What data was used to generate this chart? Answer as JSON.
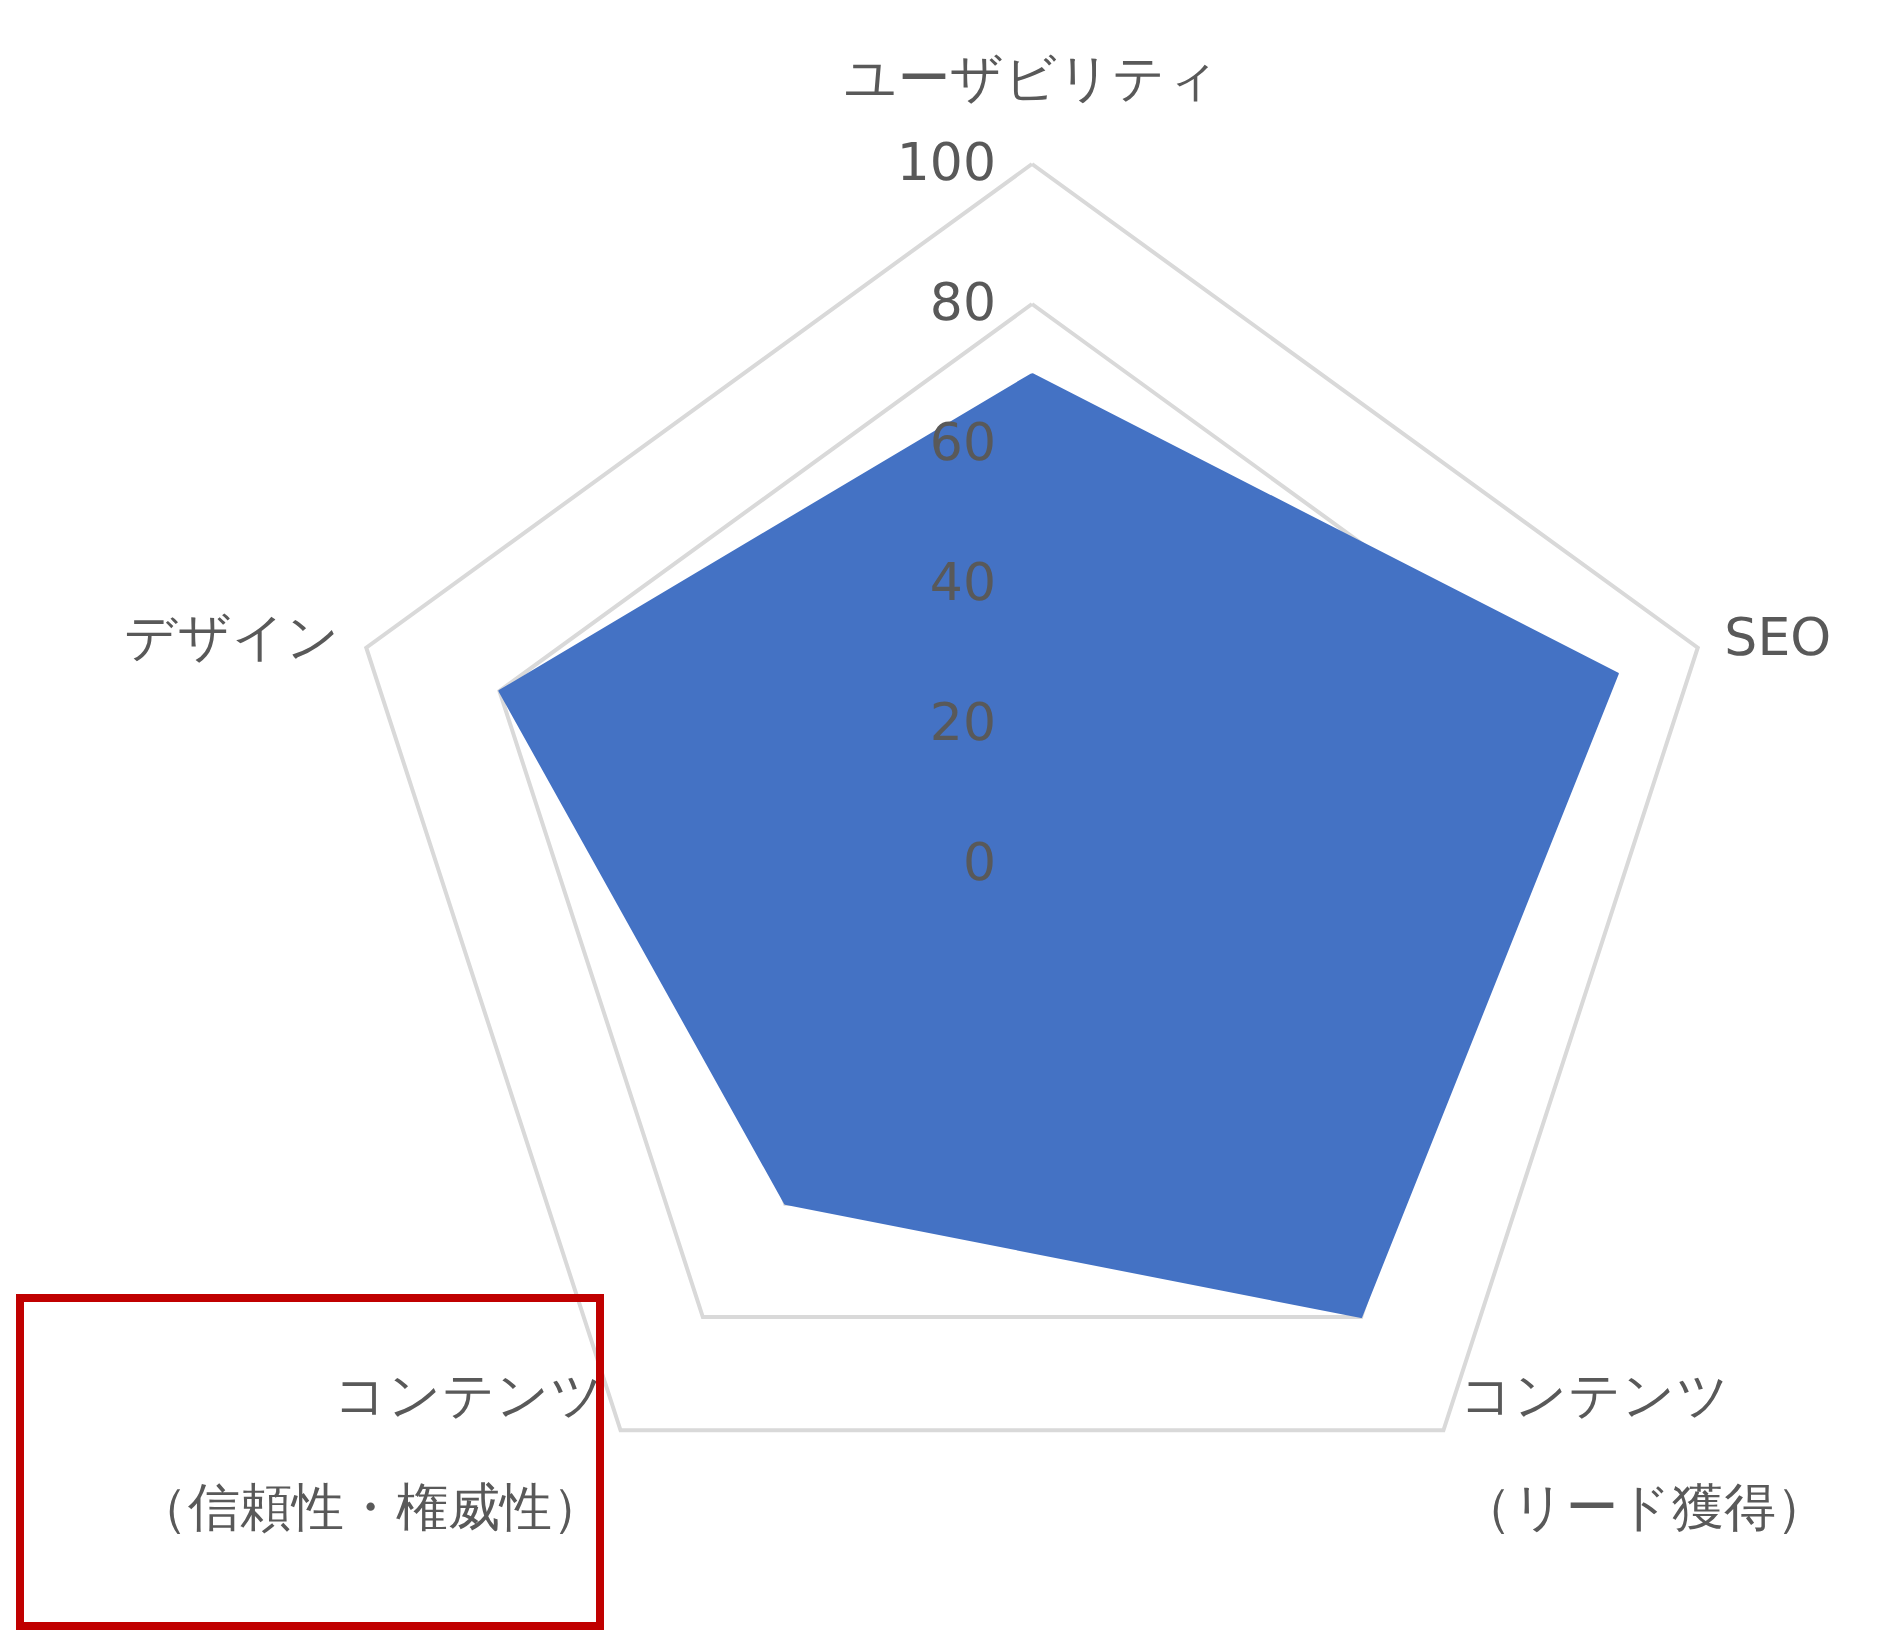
{
  "chart_data": {
    "type": "radar",
    "categories": [
      "ユーザビリティ",
      "SEO",
      "コンテンツ（リード獲得）",
      "コンテンツ（信頼性・権威性）",
      "デザイン"
    ],
    "series": [
      {
        "color": "#4472c4",
        "values": [
          70,
          88,
          80,
          60,
          80
        ]
      }
    ],
    "ylim": [
      0,
      100
    ],
    "yticks": [
      0,
      20,
      40,
      60,
      80,
      100
    ],
    "grid": true,
    "marker": "none"
  }
}
